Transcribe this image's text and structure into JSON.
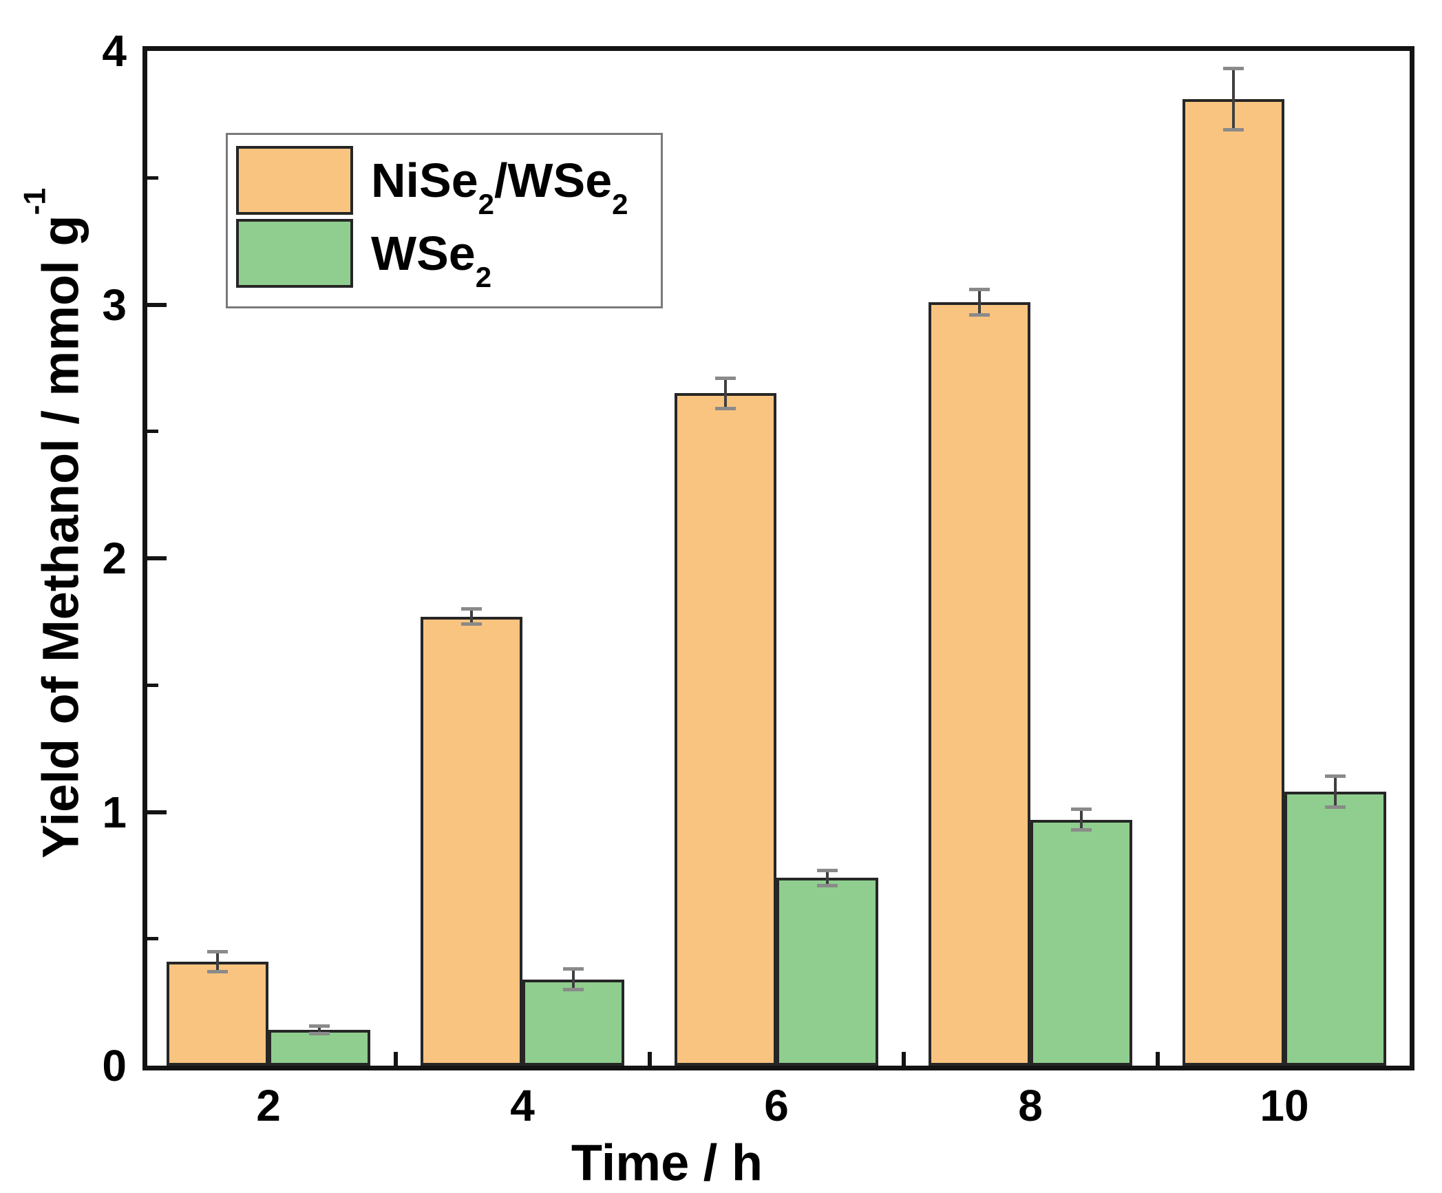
{
  "figure": {
    "background_color": "#ffffff",
    "frame_color": "#141414",
    "bar_border_color": "#262626",
    "error_line_color": "#3f3f3f",
    "error_cap_color": "#8a8a8a",
    "legend_border_color": "#7a7a7a"
  },
  "chart_data": {
    "type": "bar",
    "title": "",
    "xlabel": "Time / h",
    "ylabel": "Yield of Methanol / mmol g⁻¹",
    "categories": [
      "2",
      "4",
      "6",
      "8",
      "10"
    ],
    "ylim": [
      0,
      4
    ],
    "yticks": [
      "0",
      "1",
      "2",
      "3",
      "4"
    ],
    "y_minor_tick_step": 0.5,
    "grid": false,
    "legend_position": "top-left-inside",
    "series": [
      {
        "name": "NiSe₂/WSe₂",
        "color": "#F9C480",
        "values": [
          0.41,
          1.77,
          2.65,
          3.01,
          3.81
        ],
        "errors": [
          0.04,
          0.03,
          0.06,
          0.05,
          0.12
        ]
      },
      {
        "name": "WSe₂",
        "color": "#8FCE8E",
        "values": [
          0.14,
          0.34,
          0.74,
          0.97,
          1.08
        ],
        "errors": [
          0.015,
          0.04,
          0.03,
          0.04,
          0.06
        ]
      }
    ]
  }
}
